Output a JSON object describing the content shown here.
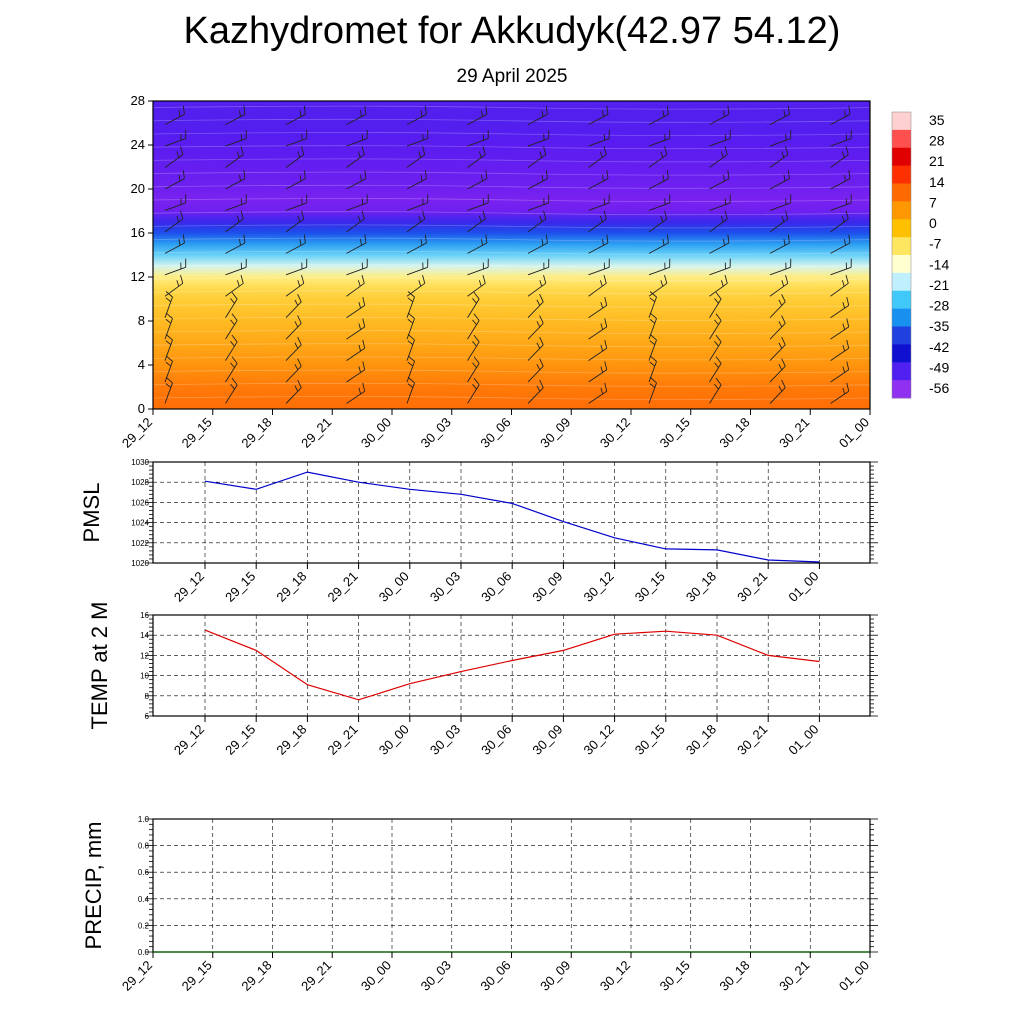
{
  "header": {
    "title": "Kazhydromet for Akkudyk(42.97 54.12)",
    "date": "29 April 2025"
  },
  "colors": {
    "pmsl_line": "#0000cc",
    "temp_line": "#dd0000",
    "precip_line": "#006400",
    "grid": "#000000",
    "colorbar": [
      "#ffd0d0",
      "#ff5050",
      "#e00000",
      "#ff3000",
      "#ff6a00",
      "#ff9800",
      "#ffc000",
      "#ffe660",
      "#ffffd0",
      "#c0f0ff",
      "#40c8f8",
      "#1890f0",
      "#2040e0",
      "#1010d0",
      "#5020f0",
      "#9030f0"
    ]
  },
  "chart_data": [
    {
      "type": "heatmap",
      "name": "upper-air-section",
      "ylim": [
        0,
        28
      ],
      "yticks": [
        "0",
        "4",
        "8",
        "12",
        "16",
        "20",
        "24",
        "28"
      ],
      "categories": [
        "29_12",
        "29_15",
        "29_18",
        "29_21",
        "30_00",
        "30_03",
        "30_06",
        "30_09",
        "30_12",
        "30_15",
        "30_18",
        "30_21",
        "01_00"
      ],
      "levels": [
        0,
        2,
        4,
        6,
        8,
        10,
        11,
        12,
        13,
        14,
        15,
        16,
        17,
        18,
        19,
        20,
        22,
        24,
        26,
        28
      ],
      "temperature_by_level": [
        17,
        15,
        11,
        7,
        3,
        -1,
        -4,
        -8,
        -14,
        -20,
        -30,
        -42,
        -52,
        -60,
        -62,
        -60,
        -58,
        -56,
        -55,
        -55
      ],
      "colorbar_labels": [
        "35",
        "28",
        "21",
        "14",
        "7",
        "0",
        "-7",
        "-14",
        "-21",
        "-28",
        "-35",
        "-42",
        "-49",
        "-56"
      ],
      "wind_barbs": true
    },
    {
      "type": "line",
      "name": "pmsl",
      "ylabel": "PMSL",
      "ylim": [
        1020,
        1030
      ],
      "yticks": [
        "1020",
        "1022",
        "1024",
        "1026",
        "1028",
        "1030"
      ],
      "categories": [
        "29_12",
        "29_15",
        "29_18",
        "29_21",
        "30_00",
        "30_03",
        "30_06",
        "30_09",
        "30_12",
        "30_15",
        "30_18",
        "30_21",
        "01_00"
      ],
      "values": [
        1028.1,
        1027.3,
        1029.0,
        1028.0,
        1027.3,
        1026.8,
        1025.9,
        1024.1,
        1022.5,
        1021.4,
        1021.3,
        1020.3,
        1020.1
      ],
      "grid": true
    },
    {
      "type": "line",
      "name": "temp2m",
      "ylabel": "TEMP at 2 M",
      "ylim": [
        6,
        16
      ],
      "yticks": [
        "6",
        "8",
        "10",
        "12",
        "14",
        "16"
      ],
      "categories": [
        "29_12",
        "29_15",
        "29_18",
        "29_21",
        "30_00",
        "30_03",
        "30_06",
        "30_09",
        "30_12",
        "30_15",
        "30_18",
        "30_21",
        "01_00"
      ],
      "values": [
        14.5,
        12.5,
        9.1,
        7.6,
        9.2,
        10.4,
        11.5,
        12.5,
        14.1,
        14.4,
        14.0,
        12.0,
        11.4
      ],
      "grid": true
    },
    {
      "type": "line",
      "name": "precip",
      "ylabel": "PRECIP, mm",
      "ylim": [
        0,
        1
      ],
      "yticks": [
        "0.0",
        "0.2",
        "0.4",
        "0.6",
        "0.8",
        "1.0"
      ],
      "categories": [
        "29_12",
        "29_15",
        "29_18",
        "29_21",
        "30_00",
        "30_03",
        "30_06",
        "30_09",
        "30_12",
        "30_15",
        "30_18",
        "30_21",
        "01_00"
      ],
      "values": [
        0,
        0,
        0,
        0,
        0,
        0,
        0,
        0,
        0,
        0,
        0,
        0,
        0
      ],
      "grid": true
    }
  ]
}
